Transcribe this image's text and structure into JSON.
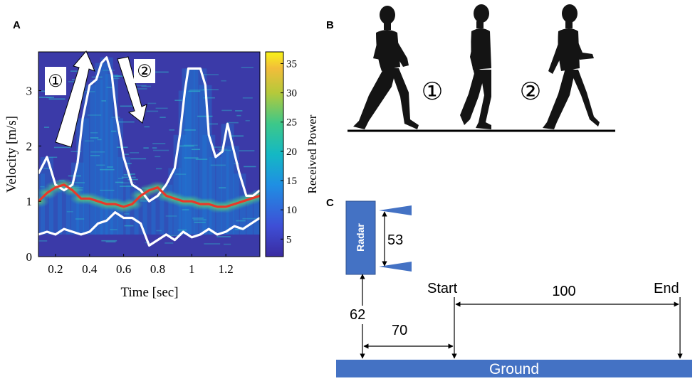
{
  "panels": {
    "a": "A",
    "b": "B",
    "c": "C"
  },
  "chart_data": {
    "type": "heatmap",
    "xlabel": "Time [sec]",
    "ylabel": "Velocity [m/s]",
    "xlim": [
      0.1,
      1.4
    ],
    "ylim": [
      0,
      3.7
    ],
    "x_ticks": [
      "0.2",
      "0.4",
      "0.6",
      "0.8",
      "1",
      "1.2"
    ],
    "x_tick_values": [
      0.2,
      0.4,
      0.6,
      0.8,
      1.0,
      1.2
    ],
    "y_ticks": [
      "0",
      "1",
      "2",
      "3"
    ],
    "y_tick_values": [
      0,
      1,
      2,
      3
    ],
    "colorbar": {
      "label": "Received Power",
      "range": [
        2,
        37
      ],
      "ticks": [
        "5",
        "10",
        "15",
        "20",
        "25",
        "30",
        "35"
      ],
      "tick_values": [
        5,
        10,
        15,
        20,
        25,
        30,
        35
      ]
    },
    "series": [
      {
        "color": "#ffffff",
        "x": [
          0.1,
          0.15,
          0.2,
          0.25,
          0.3,
          0.33,
          0.36,
          0.4,
          0.44,
          0.47,
          0.5,
          0.53,
          0.56,
          0.6,
          0.65,
          0.7,
          0.75,
          0.8,
          0.85,
          0.9,
          0.93,
          0.96,
          0.98,
          1.0,
          1.05,
          1.08,
          1.1,
          1.14,
          1.18,
          1.21,
          1.24,
          1.28,
          1.32,
          1.36,
          1.4
        ],
        "y": [
          1.5,
          1.8,
          1.3,
          1.2,
          1.3,
          1.7,
          2.5,
          3.1,
          3.2,
          3.5,
          3.6,
          3.3,
          2.5,
          1.8,
          1.3,
          1.2,
          1.0,
          1.1,
          1.3,
          1.6,
          2.2,
          3.0,
          3.4,
          3.4,
          3.4,
          3.1,
          2.2,
          1.8,
          1.9,
          2.4,
          2.0,
          1.5,
          1.1,
          1.1,
          1.2
        ]
      },
      {
        "color": "#e8382a",
        "x": [
          0.1,
          0.15,
          0.2,
          0.25,
          0.3,
          0.35,
          0.4,
          0.45,
          0.5,
          0.55,
          0.6,
          0.65,
          0.7,
          0.75,
          0.8,
          0.85,
          0.9,
          0.95,
          1.0,
          1.05,
          1.1,
          1.15,
          1.2,
          1.25,
          1.3,
          1.35,
          1.4
        ],
        "y": [
          1.0,
          1.15,
          1.25,
          1.3,
          1.2,
          1.05,
          1.05,
          1.0,
          0.95,
          0.95,
          0.9,
          0.95,
          1.1,
          1.2,
          1.25,
          1.1,
          1.05,
          1.0,
          1.0,
          0.95,
          0.95,
          0.9,
          0.9,
          0.95,
          1.0,
          1.05,
          1.1
        ]
      },
      {
        "color": "#ffffff",
        "x": [
          0.1,
          0.15,
          0.2,
          0.25,
          0.3,
          0.35,
          0.4,
          0.45,
          0.5,
          0.55,
          0.6,
          0.65,
          0.7,
          0.75,
          0.8,
          0.85,
          0.9,
          0.95,
          1.0,
          1.05,
          1.1,
          1.15,
          1.2,
          1.25,
          1.3,
          1.35,
          1.4
        ],
        "y": [
          0.4,
          0.45,
          0.4,
          0.5,
          0.45,
          0.4,
          0.45,
          0.6,
          0.65,
          0.8,
          0.7,
          0.7,
          0.6,
          0.2,
          0.3,
          0.4,
          0.3,
          0.45,
          0.35,
          0.4,
          0.5,
          0.4,
          0.45,
          0.55,
          0.5,
          0.6,
          0.7
        ]
      }
    ],
    "annotations": [
      "①",
      "②"
    ]
  },
  "walk": {
    "phase1": "①",
    "phase2": "②"
  },
  "setup": {
    "radar_label": "Radar",
    "beam_dim": "53",
    "height_dim": "62",
    "offset_dim": "70",
    "track_dim": "100",
    "start_label": "Start",
    "end_label": "End",
    "ground_label": "Ground",
    "radar_color": "#4472c4"
  }
}
